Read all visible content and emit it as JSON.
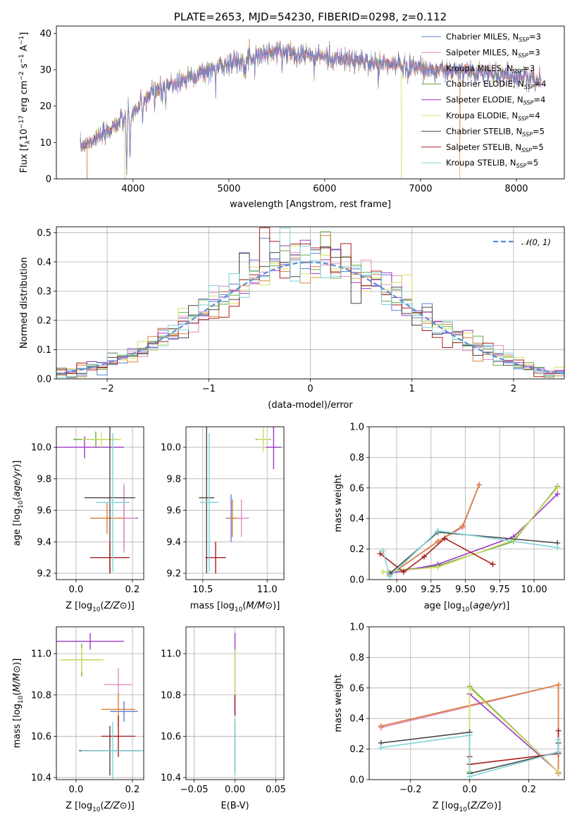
{
  "colors": {
    "Chabrier MILES": "#5b7fd6",
    "Salpeter MILES": "#e48ec1",
    "Kroupa MILES": "#e0803a",
    "Chabrier ELODIE": "#6aa83a",
    "Salpeter ELODIE": "#9a3ac4",
    "Kroupa ELODIE": "#d8e06a",
    "Chabrier STELIB": "#4a4a4a",
    "Salpeter STELIB": "#a81e1e",
    "Kroupa STELIB": "#7fd4d8",
    "normal_curve": "#5b8fd6",
    "grid": "#b0b0b0"
  },
  "chart_data": [
    {
      "id": "spectrum",
      "type": "line",
      "title": "PLATE=2653, MJD=54230, FIBERID=0298, z=0.112",
      "xlabel": "wavelength [Angstrom, rest frame]",
      "ylabel": "Flux [f",
      "ylabel_parts": [
        "Flux [f",
        "λ",
        "10",
        "−17",
        " erg cm",
        "−2",
        " s",
        "−1",
        " A",
        "−1",
        "]"
      ],
      "xlim": [
        3200,
        8500
      ],
      "ylim": [
        0,
        42
      ],
      "xticks": [
        4000,
        5000,
        6000,
        7000,
        8000
      ],
      "yticks": [
        0,
        10,
        20,
        30,
        40
      ],
      "grid": false,
      "legend_placement": "top-right",
      "legend": [
        {
          "name": "Chabrier MILES",
          "n": "3"
        },
        {
          "name": "Salpeter MILES",
          "n": "3"
        },
        {
          "name": "Kroupa MILES",
          "n": "3"
        },
        {
          "name": "Chabrier ELODIE",
          "n": "4"
        },
        {
          "name": "Salpeter ELODIE",
          "n": "4"
        },
        {
          "name": "Kroupa ELODIE",
          "n": "4"
        },
        {
          "name": "Chabrier STELIB",
          "n": "5"
        },
        {
          "name": "Salpeter STELIB",
          "n": "5"
        },
        {
          "name": "Kroupa STELIB",
          "n": "5"
        }
      ],
      "legend_sub": "SSP",
      "legend_prefix": "N",
      "continuum": [
        [
          3450,
          9
        ],
        [
          3600,
          11
        ],
        [
          3700,
          12
        ],
        [
          3800,
          15
        ],
        [
          3900,
          16
        ],
        [
          4000,
          18
        ],
        [
          4100,
          21
        ],
        [
          4200,
          24
        ],
        [
          4300,
          25
        ],
        [
          4500,
          27
        ],
        [
          4700,
          29
        ],
        [
          4900,
          31
        ],
        [
          5100,
          32.5
        ],
        [
          5300,
          34
        ],
        [
          5500,
          35
        ],
        [
          5700,
          34.5
        ],
        [
          5900,
          34
        ],
        [
          6100,
          33
        ],
        [
          6300,
          32.5
        ],
        [
          6500,
          32
        ],
        [
          6700,
          31.5
        ],
        [
          6900,
          31
        ],
        [
          7100,
          30
        ],
        [
          7300,
          29.5
        ],
        [
          7500,
          29.5
        ],
        [
          7700,
          29
        ],
        [
          7900,
          28.5
        ],
        [
          8100,
          28
        ],
        [
          8250,
          27
        ]
      ],
      "absorption": [
        [
          3933,
          14
        ],
        [
          3968,
          12
        ],
        [
          4101,
          6
        ],
        [
          4227,
          4
        ],
        [
          4304,
          5
        ],
        [
          4340,
          6
        ],
        [
          4861,
          5
        ],
        [
          5175,
          5
        ],
        [
          5270,
          3
        ],
        [
          5890,
          5
        ],
        [
          6563,
          3
        ],
        [
          6870,
          3
        ],
        [
          7600,
          2
        ]
      ],
      "drops": [
        {
          "series": "Kroupa MILES",
          "x": 3520
        },
        {
          "series": "Kroupa ELODIE",
          "x": 3915
        },
        {
          "series": "Kroupa ELODIE",
          "x": 6800
        },
        {
          "series": "Kroupa MILES",
          "x": 7410
        }
      ]
    },
    {
      "id": "residuals",
      "type": "line",
      "xlabel": "(data-model)/error",
      "ylabel": "Normed distribution",
      "xlim": [
        -2.5,
        2.5
      ],
      "ylim": [
        0,
        0.52
      ],
      "xticks": [
        -2,
        -1,
        0,
        1,
        2
      ],
      "yticks": [
        0.0,
        0.1,
        0.2,
        0.3,
        0.4,
        0.5
      ],
      "grid": true,
      "legend_placement": "top-right",
      "legend": [
        {
          "name": "𝒩(0, 1)"
        }
      ],
      "bin_width": 0.1
    },
    {
      "id": "age-vs-Z",
      "type": "scatter",
      "xlabel": "Z [log10(Z/Z⊙)]",
      "ylabel": "age  [log10(age/yr)]",
      "xlim": [
        -0.07,
        0.24
      ],
      "ylim": [
        9.16,
        10.13
      ],
      "xticks": [
        0.0,
        0.2
      ],
      "yticks": [
        9.2,
        9.4,
        9.6,
        9.8,
        10.0
      ],
      "grid": true,
      "points": [
        {
          "s": "Chabrier MILES",
          "x": 0.17,
          "y": 9.55,
          "xe": 0.05,
          "ye": 0.2
        },
        {
          "s": "Salpeter MILES",
          "x": 0.17,
          "y": 9.55,
          "xe": 0.04,
          "ye": 0.22
        },
        {
          "s": "Kroupa MILES",
          "x": 0.11,
          "y": 9.55,
          "xe": 0.06,
          "ye": 0.1
        },
        {
          "s": "Chabrier ELODIE",
          "x": 0.07,
          "y": 10.05,
          "xe": 0.08,
          "ye": 0.05
        },
        {
          "s": "Salpeter ELODIE",
          "x": 0.03,
          "y": 10.0,
          "xe": 0.14,
          "ye": 0.07
        },
        {
          "s": "Kroupa ELODIE",
          "x": 0.09,
          "y": 10.05,
          "xe": 0.07,
          "ye": 0.05
        },
        {
          "s": "Chabrier STELIB",
          "x": 0.12,
          "y": 9.68,
          "xe": 0.09,
          "ye": 0.48
        },
        {
          "s": "Salpeter STELIB",
          "x": 0.12,
          "y": 9.3,
          "xe": 0.07,
          "ye": 0.1
        },
        {
          "s": "Kroupa STELIB",
          "x": 0.13,
          "y": 9.65,
          "xe": 0.06,
          "ye": 0.44
        }
      ]
    },
    {
      "id": "age-vs-mass",
      "type": "scatter",
      "xlabel": "mass [log10(M/M⊙)]",
      "ylabel": "",
      "xlim": [
        10.37,
        11.13
      ],
      "ylim": [
        9.16,
        10.13
      ],
      "xticks": [
        10.5,
        11.0
      ],
      "yticks": [
        9.2,
        9.4,
        9.6,
        9.8,
        10.0
      ],
      "grid": true,
      "points": [
        {
          "s": "Chabrier MILES",
          "x": 10.72,
          "y": 9.55,
          "xe": 0.04,
          "ye": 0.15
        },
        {
          "s": "Salpeter MILES",
          "x": 10.8,
          "y": 9.55,
          "xe": 0.06,
          "ye": 0.12
        },
        {
          "s": "Kroupa MILES",
          "x": 10.73,
          "y": 9.55,
          "xe": 0.04,
          "ye": 0.12
        },
        {
          "s": "Chabrier ELODIE",
          "x": 10.97,
          "y": 10.05,
          "xe": 0.06,
          "ye": 0.06
        },
        {
          "s": "Salpeter ELODIE",
          "x": 11.05,
          "y": 10.0,
          "xe": 0.06,
          "ye": 0.14
        },
        {
          "s": "Kroupa ELODIE",
          "x": 10.97,
          "y": 10.05,
          "xe": 0.05,
          "ye": 0.08
        },
        {
          "s": "Chabrier STELIB",
          "x": 10.53,
          "y": 9.68,
          "xe": 0.06,
          "ye": 0.48
        },
        {
          "s": "Salpeter STELIB",
          "x": 10.6,
          "y": 9.3,
          "xe": 0.08,
          "ye": 0.1
        },
        {
          "s": "Kroupa STELIB",
          "x": 10.55,
          "y": 9.65,
          "xe": 0.07,
          "ye": 0.44
        }
      ]
    },
    {
      "id": "weight-vs-age",
      "type": "line",
      "xlabel": "age  [log10(age/yr)]",
      "ylabel": "mass weight",
      "xlim": [
        8.8,
        10.22
      ],
      "ylim": [
        0,
        1.0
      ],
      "xticks": [
        9.0,
        9.25,
        9.5,
        9.75,
        10.0
      ],
      "yticks": [
        0.0,
        0.2,
        0.4,
        0.6,
        0.8,
        1.0
      ],
      "grid": true,
      "series": [
        {
          "s": "Chabrier MILES",
          "pts": [
            [
              8.95,
              0.03
            ],
            [
              9.3,
              0.25
            ],
            [
              9.48,
              0.35
            ],
            [
              9.6,
              0.62
            ]
          ]
        },
        {
          "s": "Salpeter MILES",
          "pts": [
            [
              8.95,
              0.03
            ],
            [
              9.3,
              0.25
            ],
            [
              9.48,
              0.34
            ],
            [
              9.6,
              0.62
            ]
          ]
        },
        {
          "s": "Kroupa MILES",
          "pts": [
            [
              8.95,
              0.03
            ],
            [
              9.3,
              0.25
            ],
            [
              9.48,
              0.35
            ],
            [
              9.6,
              0.62
            ]
          ]
        },
        {
          "s": "Chabrier ELODIE",
          "pts": [
            [
              8.9,
              0.05
            ],
            [
              9.3,
              0.09
            ],
            [
              9.85,
              0.25
            ],
            [
              10.17,
              0.61
            ]
          ]
        },
        {
          "s": "Salpeter ELODIE",
          "pts": [
            [
              8.95,
              0.04
            ],
            [
              9.3,
              0.1
            ],
            [
              9.85,
              0.28
            ],
            [
              10.17,
              0.56
            ]
          ]
        },
        {
          "s": "Kroupa ELODIE",
          "pts": [
            [
              8.9,
              0.05
            ],
            [
              9.3,
              0.08
            ],
            [
              9.85,
              0.26
            ],
            [
              10.17,
              0.6
            ]
          ]
        },
        {
          "s": "Chabrier STELIB",
          "pts": [
            [
              8.95,
              0.04
            ],
            [
              9.3,
              0.31
            ],
            [
              10.17,
              0.24
            ]
          ]
        },
        {
          "s": "Salpeter STELIB",
          "pts": [
            [
              8.88,
              0.17
            ],
            [
              9.05,
              0.05
            ],
            [
              9.2,
              0.15
            ],
            [
              9.35,
              0.27
            ],
            [
              9.7,
              0.1
            ]
          ]
        },
        {
          "s": "Kroupa STELIB",
          "pts": [
            [
              8.9,
              0.19
            ],
            [
              8.95,
              0.02
            ],
            [
              9.3,
              0.32
            ],
            [
              10.17,
              0.21
            ]
          ]
        }
      ]
    },
    {
      "id": "mass-vs-Z",
      "type": "scatter",
      "xlabel": "Z [log10(Z/Z⊙)]",
      "ylabel": "mass [log10(M/M⊙)]",
      "xlim": [
        -0.07,
        0.24
      ],
      "ylim": [
        10.39,
        11.13
      ],
      "xticks": [
        0.0,
        0.2
      ],
      "yticks": [
        10.4,
        10.6,
        10.8,
        11.0
      ],
      "grid": true,
      "points": [
        {
          "s": "Chabrier MILES",
          "x": 0.17,
          "y": 10.72,
          "xe": 0.05,
          "ye": 0.05
        },
        {
          "s": "Salpeter MILES",
          "x": 0.15,
          "y": 10.85,
          "xe": 0.05,
          "ye": 0.08
        },
        {
          "s": "Kroupa MILES",
          "x": 0.15,
          "y": 10.73,
          "xe": 0.06,
          "ye": 0.08
        },
        {
          "s": "Chabrier ELODIE",
          "x": 0.02,
          "y": 10.97,
          "xe": 0.07,
          "ye": 0.08
        },
        {
          "s": "Salpeter ELODIE",
          "x": 0.05,
          "y": 11.06,
          "xe": 0.12,
          "ye": 0.04
        },
        {
          "s": "Kroupa ELODIE",
          "x": 0.02,
          "y": 10.97,
          "xe": 0.08,
          "ye": 0.06
        },
        {
          "s": "Chabrier STELIB",
          "x": 0.12,
          "y": 10.53,
          "xe": 0.11,
          "ye": 0.12
        },
        {
          "s": "Salpeter STELIB",
          "x": 0.15,
          "y": 10.6,
          "xe": 0.06,
          "ye": 0.1
        },
        {
          "s": "Kroupa STELIB",
          "x": 0.13,
          "y": 10.53,
          "xe": 0.11,
          "ye": 0.14
        }
      ]
    },
    {
      "id": "mass-vs-EBV",
      "type": "scatter",
      "xlabel": "E(B-V)",
      "ylabel": "",
      "xlim": [
        -0.06,
        0.06
      ],
      "ylim": [
        10.39,
        11.13
      ],
      "xticks": [
        -0.05,
        0.0,
        0.05
      ],
      "yticks": [
        10.4,
        10.6,
        10.8,
        11.0
      ],
      "grid": true,
      "points": [
        {
          "s": "Salpeter ELODIE",
          "x": 0.0,
          "y": 10.9,
          "xe": 0.0,
          "ye": 0.2
        },
        {
          "s": "Kroupa ELODIE",
          "x": 0.0,
          "y": 10.9,
          "xe": 0.0,
          "ye": 0.12
        },
        {
          "s": "Salpeter STELIB",
          "x": 0.0,
          "y": 10.75,
          "xe": 0.0,
          "ye": 0.05
        },
        {
          "s": "Chabrier STELIB",
          "x": 0.0,
          "y": 10.55,
          "xe": 0.0,
          "ye": 0.12
        },
        {
          "s": "Kroupa STELIB",
          "x": 0.0,
          "y": 10.55,
          "xe": 0.0,
          "ye": 0.14
        }
      ]
    },
    {
      "id": "weight-vs-Z",
      "type": "line",
      "xlabel": "Z [log10(Z/Z⊙)]",
      "ylabel": "mass weight",
      "xlim": [
        -0.34,
        0.32
      ],
      "ylim": [
        0,
        1.0
      ],
      "xticks": [
        -0.2,
        0.0,
        0.2
      ],
      "yticks": [
        0.0,
        0.2,
        0.4,
        0.6,
        0.8,
        1.0
      ],
      "grid": true,
      "series": [
        {
          "s": "Chabrier MILES",
          "pts": [
            [
              -0.3,
              0.35
            ],
            [
              0.3,
              0.62
            ],
            [
              0.3,
              0.04
            ]
          ]
        },
        {
          "s": "Salpeter MILES",
          "pts": [
            [
              -0.3,
              0.34
            ],
            [
              0.3,
              0.62
            ],
            [
              0.3,
              0.04
            ]
          ]
        },
        {
          "s": "Kroupa MILES",
          "pts": [
            [
              -0.3,
              0.35
            ],
            [
              0.3,
              0.62
            ],
            [
              0.3,
              0.04
            ]
          ]
        },
        {
          "s": "Chabrier ELODIE",
          "pts": [
            [
              0.0,
              0.05
            ],
            [
              0.0,
              0.61
            ],
            [
              0.3,
              0.05
            ]
          ]
        },
        {
          "s": "Salpeter ELODIE",
          "pts": [
            [
              0.0,
              0.1
            ],
            [
              0.0,
              0.56
            ],
            [
              0.3,
              0.05
            ]
          ]
        },
        {
          "s": "Kroupa ELODIE",
          "pts": [
            [
              0.0,
              0.04
            ],
            [
              0.0,
              0.6
            ],
            [
              0.3,
              0.05
            ]
          ]
        },
        {
          "s": "Chabrier STELIB",
          "pts": [
            [
              -0.3,
              0.24
            ],
            [
              0.0,
              0.31
            ],
            [
              0.0,
              0.04
            ],
            [
              0.3,
              0.18
            ],
            [
              0.3,
              0.24
            ]
          ]
        },
        {
          "s": "Salpeter STELIB",
          "pts": [
            [
              0.0,
              0.15
            ],
            [
              0.0,
              0.1
            ],
            [
              0.3,
              0.17
            ],
            [
              0.3,
              0.32
            ]
          ]
        },
        {
          "s": "Kroupa STELIB",
          "pts": [
            [
              -0.3,
              0.21
            ],
            [
              0.0,
              0.29
            ],
            [
              0.0,
              0.02
            ],
            [
              0.3,
              0.18
            ],
            [
              0.3,
              0.26
            ]
          ]
        }
      ]
    }
  ]
}
